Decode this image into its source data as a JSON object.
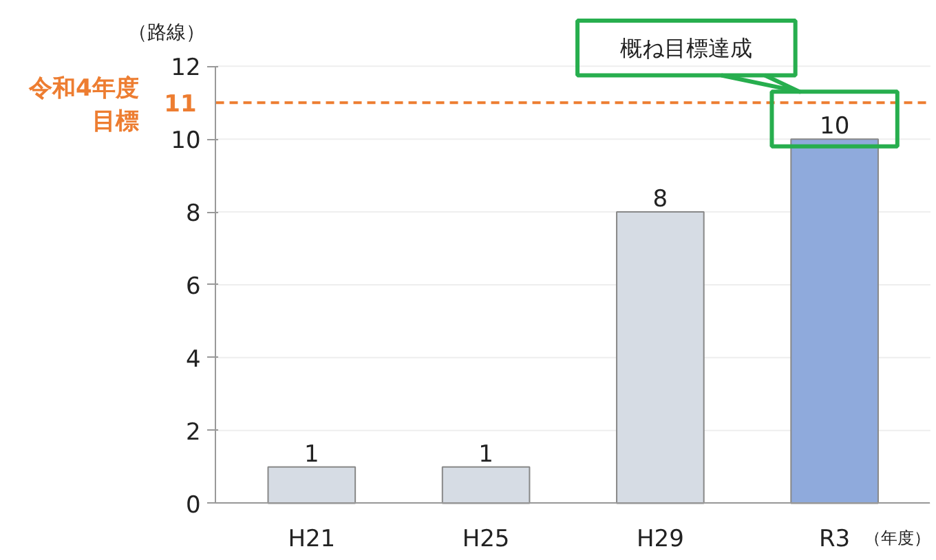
{
  "chart_data": {
    "type": "bar",
    "ylabel": "（路線）",
    "xlabel": "（年度）",
    "categories": [
      "H21",
      "H25",
      "H29",
      "R3"
    ],
    "values": [
      1,
      1,
      8,
      10
    ],
    "colors": [
      "#d6dce4",
      "#d6dce4",
      "#d6dce4",
      "#8faadc"
    ],
    "data_labels": true,
    "ylim": [
      0,
      12
    ],
    "yticks": [
      0,
      2,
      4,
      6,
      8,
      10,
      12
    ],
    "grid": "y",
    "ref_lines": [
      {
        "axis": "y",
        "value": 11,
        "label": "令和4年度目標",
        "color": "#ed7d31",
        "line_style": "dashed"
      }
    ],
    "annotations": [
      "概ね目標達成",
      "11"
    ]
  }
}
